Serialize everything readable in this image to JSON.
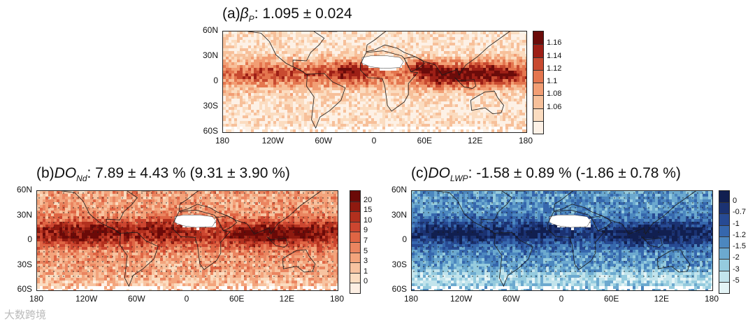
{
  "panels": [
    {
      "id": "a",
      "title": {
        "prefix": "(a)",
        "symbol": "β",
        "sub": "P",
        "rest": ": 1.095 ± 0.024"
      },
      "lat_labels": [
        "60N",
        "30N",
        "0",
        "30S",
        "60S"
      ],
      "lon_labels": [
        "180",
        "120W",
        "60W",
        "0",
        "60E",
        "12E",
        "180"
      ],
      "colorbar": [
        "1.16",
        "1.14",
        "1.12",
        "1.1",
        "1.08",
        "1.06"
      ],
      "palette": [
        "#fdf1e6",
        "#fbdcc0",
        "#f7c09a",
        "#f29e74",
        "#e4764f",
        "#c84a30",
        "#9d1f16",
        "#6b0c0a"
      ],
      "stippled": false
    },
    {
      "id": "b",
      "title": {
        "prefix": "(b)",
        "symbol": "DO",
        "sub": "Nd",
        "rest": ":  7.89 ± 4.43 % (9.31 ± 3.90 %)"
      },
      "lat_labels": [
        "60N",
        "30N",
        "0",
        "30S",
        "60S"
      ],
      "lon_labels": [
        "180",
        "120W",
        "60W",
        "0",
        "60E",
        "12E",
        "180"
      ],
      "colorbar": [
        "20",
        "15",
        "10",
        "9",
        "7",
        "5",
        "3",
        "1",
        "0"
      ],
      "palette": [
        "#fdefe3",
        "#fbdcc0",
        "#f7c3a0",
        "#f3a47c",
        "#ea8560",
        "#df6544",
        "#cc4630",
        "#b2301e",
        "#8f1a10",
        "#6b0a08"
      ],
      "stippled": true
    },
    {
      "id": "c",
      "title": {
        "prefix": "(c)",
        "symbol": "DO",
        "sub": "LWP",
        "rest": ": -1.58 ± 0.89 % (-1.86 ± 0.78 %)"
      },
      "lat_labels": [
        "60N",
        "30N",
        "0",
        "30S",
        "60S"
      ],
      "lon_labels": [
        "180",
        "120W",
        "60W",
        "0",
        "60E",
        "12E",
        "180"
      ],
      "colorbar": [
        "0",
        "-0.7",
        "-1",
        "-1.2",
        "-1.5",
        "-2",
        "-3",
        "-5"
      ],
      "palette": [
        "#e4f4f6",
        "#c2e4ec",
        "#95cbde",
        "#6ca9cf",
        "#4c87bf",
        "#3667ad",
        "#274a93",
        "#1b3272",
        "#111f50"
      ],
      "stippled": true
    }
  ],
  "watermark": "大数跨境"
}
